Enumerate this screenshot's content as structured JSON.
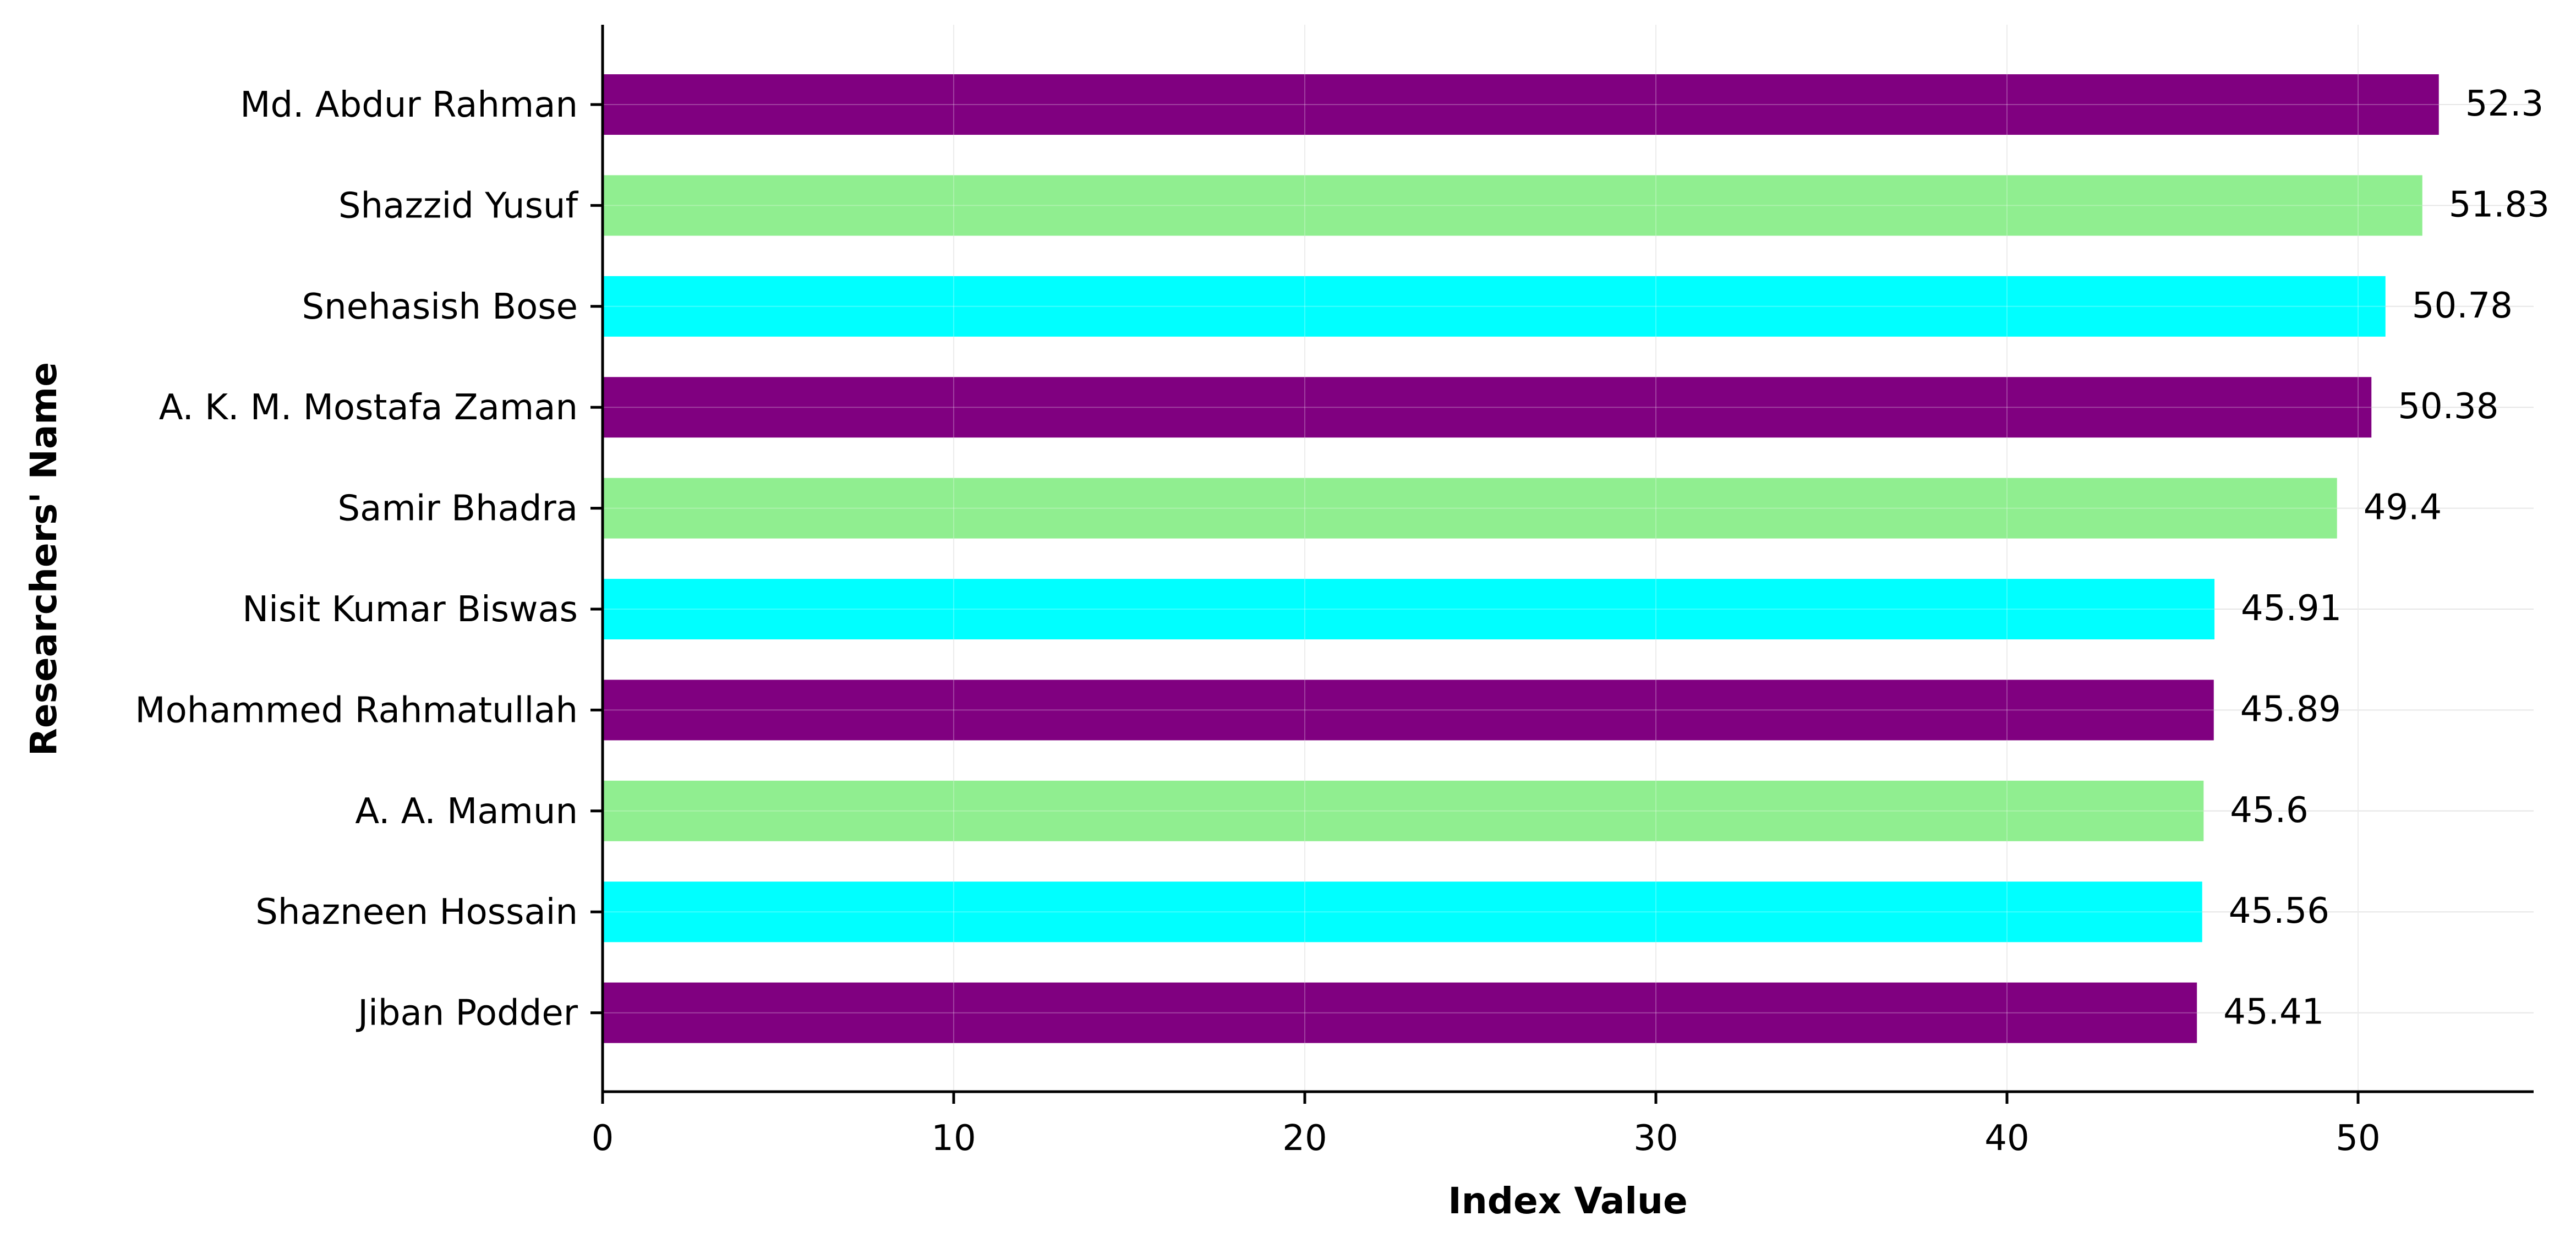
{
  "chart_data": {
    "type": "bar",
    "orientation": "horizontal",
    "title": "",
    "xlabel": "Index Value",
    "ylabel": "Researchers' Name",
    "xlim": [
      0,
      55
    ],
    "x_ticks": [
      "0",
      "10",
      "20",
      "30",
      "40",
      "50"
    ],
    "grid": true,
    "legend": "none",
    "categories": [
      "Md. Abdur Rahman",
      "Shazzid Yusuf",
      "Snehasish Bose",
      "A. K. M. Mostafa Zaman",
      "Samir Bhadra",
      "Nisit Kumar Biswas",
      "Mohammed Rahmatullah",
      "A. A. Mamun",
      "Shazneen Hossain",
      "Jiban Podder"
    ],
    "values": [
      52.3,
      51.83,
      50.78,
      50.38,
      49.4,
      45.91,
      45.89,
      45.6,
      45.56,
      45.41
    ],
    "value_labels": [
      "52.3",
      "51.83",
      "50.78",
      "50.38",
      "49.4",
      "45.91",
      "45.89",
      "45.6",
      "45.56",
      "45.41"
    ],
    "colors": [
      "#800080",
      "#90ee90",
      "#00ffff",
      "#800080",
      "#90ee90",
      "#00ffff",
      "#800080",
      "#90ee90",
      "#00ffff",
      "#800080"
    ]
  }
}
